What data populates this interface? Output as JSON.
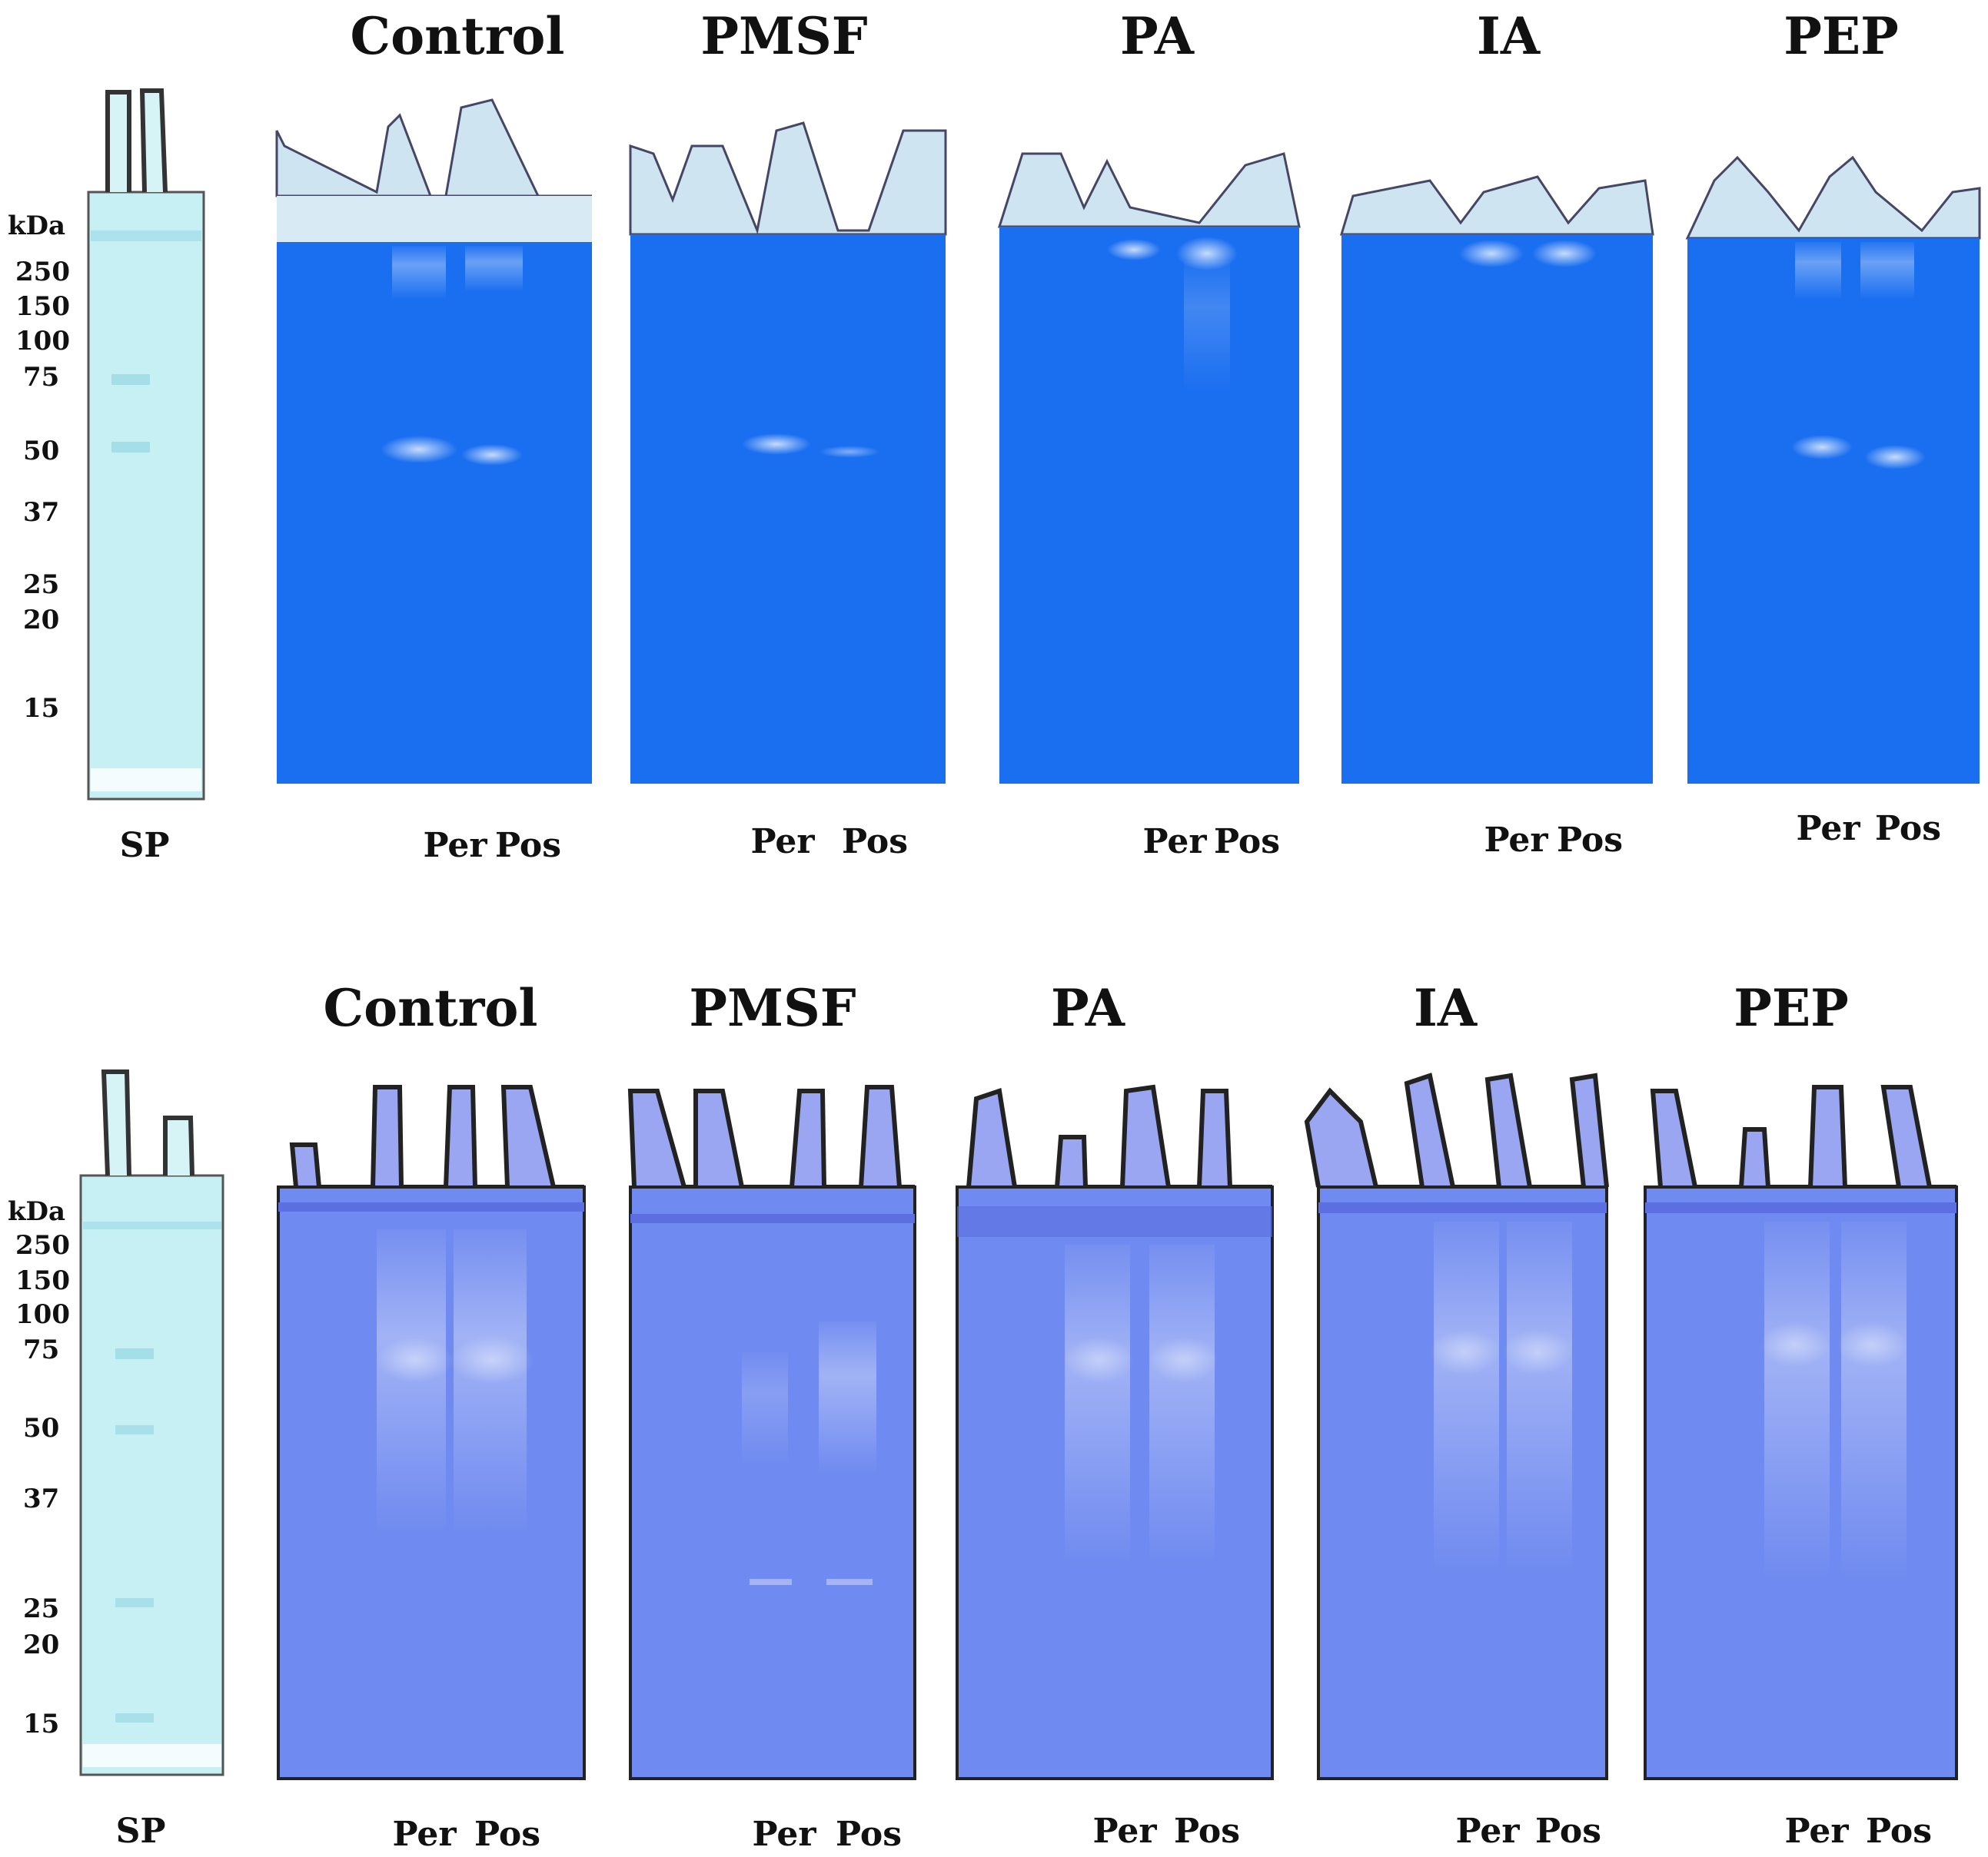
{
  "figure": {
    "top": {
      "unit_label": "kDa",
      "markers": [
        "250",
        "150",
        "100",
        "75",
        "50",
        "37",
        "25",
        "20",
        "15"
      ],
      "standard_lane_label": "SP",
      "panels": [
        {
          "title": "Control",
          "lanes": [
            "Per",
            "Pos"
          ]
        },
        {
          "title": "PMSF",
          "lanes": [
            "Per",
            "Pos"
          ]
        },
        {
          "title": "PA",
          "lanes": [
            "Per",
            "Pos"
          ]
        },
        {
          "title": "IA",
          "lanes": [
            "Per",
            "Pos"
          ]
        },
        {
          "title": "PEP",
          "lanes": [
            "Per",
            "Pos"
          ]
        }
      ]
    },
    "bottom": {
      "unit_label": "kDa",
      "markers": [
        "250",
        "150",
        "100",
        "75",
        "50",
        "37",
        "25",
        "20",
        "15"
      ],
      "standard_lane_label": "SP",
      "panels": [
        {
          "title": "Control",
          "lanes": [
            "Per",
            "Pos"
          ]
        },
        {
          "title": "PMSF",
          "lanes": [
            "Per",
            "Pos"
          ]
        },
        {
          "title": "PA",
          "lanes": [
            "Per",
            "Pos"
          ]
        },
        {
          "title": "IA",
          "lanes": [
            "Per",
            "Pos"
          ]
        },
        {
          "title": "PEP",
          "lanes": [
            "Per",
            "Pos"
          ]
        }
      ]
    },
    "colors": {
      "top_gel": "#1a6ef0",
      "bottom_gel": "#6f8af0",
      "standard_gel": "#c6f0f4",
      "well_top": "#c9e3f0",
      "well_bottom": "#9aa6f2"
    }
  }
}
